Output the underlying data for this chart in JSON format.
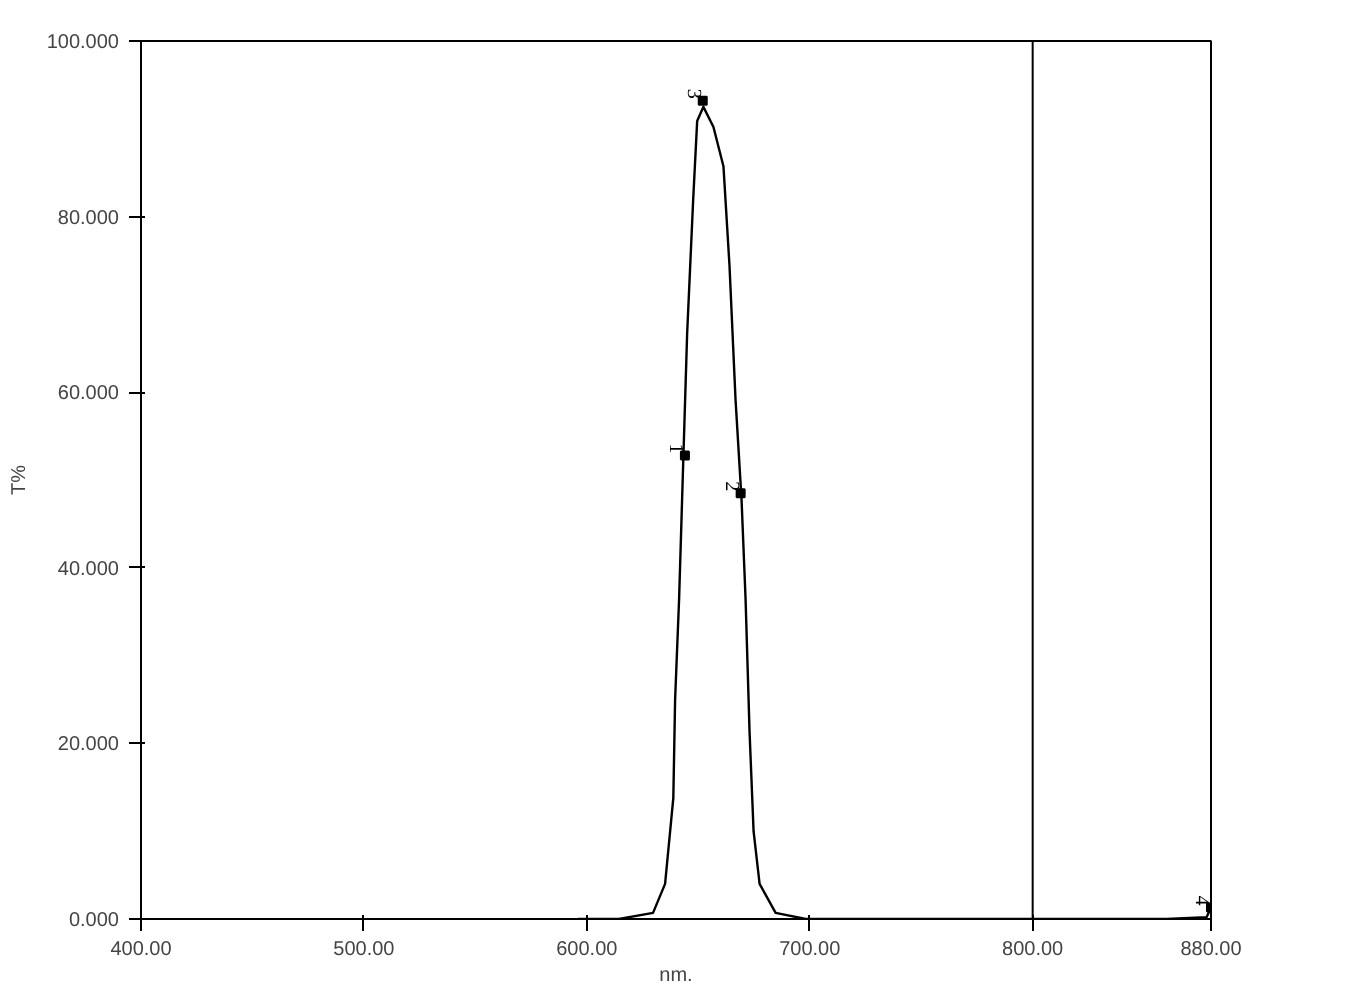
{
  "chart_data": {
    "type": "line",
    "xlabel": "nm.",
    "ylabel": "T%",
    "grid": false,
    "xlim": [
      400,
      880
    ],
    "ylim": [
      0,
      100
    ],
    "xticks": [
      {
        "value": 400,
        "label": "400.00"
      },
      {
        "value": 500,
        "label": "500.00"
      },
      {
        "value": 600,
        "label": "600.00"
      },
      {
        "value": 700,
        "label": "700.00"
      },
      {
        "value": 800,
        "label": "800.00"
      },
      {
        "value": 880,
        "label": "880.00"
      }
    ],
    "yticks": [
      {
        "value": 0,
        "label": "0.000"
      },
      {
        "value": 20,
        "label": "20.000"
      },
      {
        "value": 40,
        "label": "40.000"
      },
      {
        "value": 60,
        "label": "60.000"
      },
      {
        "value": 80,
        "label": "80.000"
      },
      {
        "value": 100,
        "label": "100.000"
      }
    ],
    "ref_lines": [
      {
        "axis": "x",
        "value": 800,
        "color": "#000000"
      }
    ],
    "series": [
      {
        "color": "#000000",
        "marker": "none",
        "x": [
          596,
          614.4,
          629.7,
          635.1,
          638.8,
          639.6,
          641.4,
          643.2,
          645,
          647.7,
          649.5,
          652.3,
          656.8,
          661.3,
          664,
          666.7,
          669.4,
          671.2,
          673,
          674.8,
          677.5,
          684.7,
          698.2,
          750,
          800,
          860,
          878,
          880
        ],
        "values": [
          0,
          0,
          0.7,
          4,
          13.8,
          25,
          36.5,
          51.7,
          66.7,
          81.9,
          90.9,
          92.5,
          90.2,
          85.7,
          74.4,
          59.2,
          47.8,
          36.5,
          21.3,
          10,
          4,
          0.7,
          0,
          0,
          0,
          0,
          0.2,
          1.3
        ]
      },
      {
        "type": "scatter",
        "color": "#000000",
        "marker": "square",
        "x": [
          644,
          669,
          652,
          880
        ],
        "values": [
          52.8,
          48.5,
          93.2,
          1.3
        ]
      }
    ],
    "annotations": [
      {
        "text": "1",
        "x": 644,
        "y": 52.8
      },
      {
        "text": "2",
        "x": 669,
        "y": 48.5
      },
      {
        "text": "3",
        "x": 652,
        "y": 93.2
      },
      {
        "text": "4",
        "x": 880,
        "y": 1.3
      }
    ]
  }
}
